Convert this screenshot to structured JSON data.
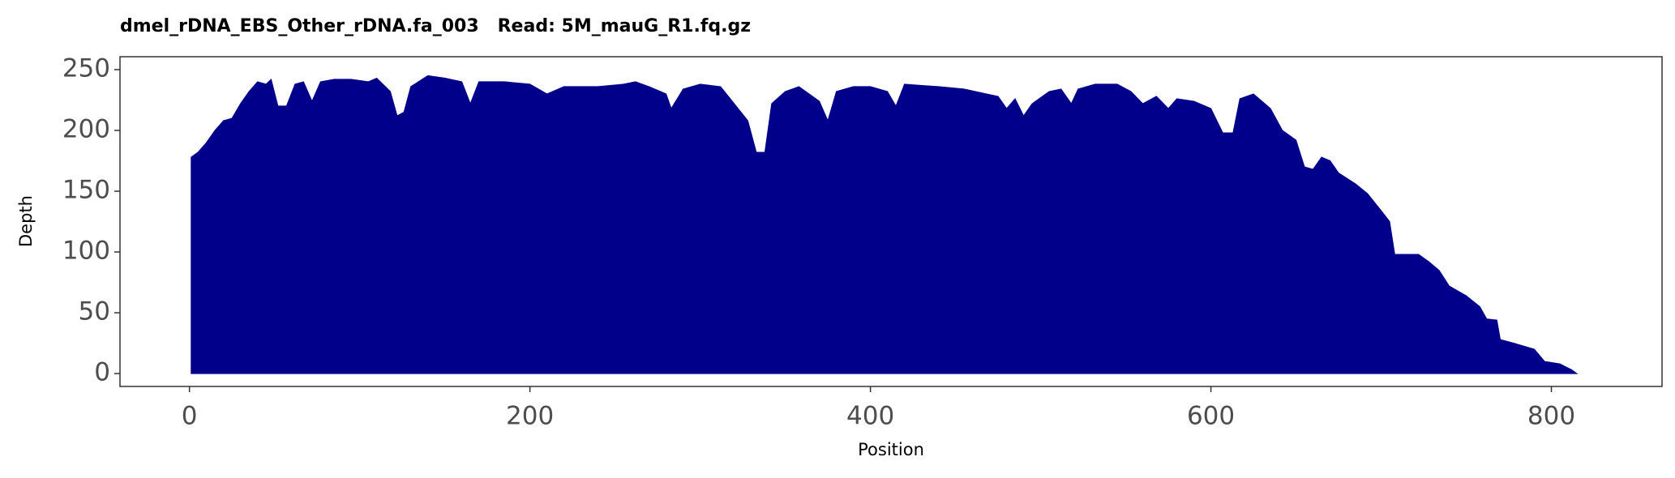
{
  "chart_data": {
    "type": "area",
    "title": "dmel_rDNA_EBS_Other_rDNA.fa_003   Read: 5M_mauG_R1.fq.gz",
    "x_label": "Position",
    "y_label": "Depth",
    "color": "#00008b",
    "x": [
      1,
      5,
      10,
      15,
      20,
      25,
      30,
      35,
      40,
      45,
      48,
      52,
      57,
      62,
      67,
      72,
      77,
      85,
      95,
      105,
      110,
      118,
      122,
      126,
      130,
      140,
      150,
      160,
      165,
      170,
      185,
      200,
      210,
      220,
      240,
      255,
      262,
      270,
      280,
      283,
      290,
      300,
      312,
      320,
      328,
      333,
      338,
      342,
      350,
      358,
      364,
      370,
      375,
      380,
      390,
      400,
      410,
      415,
      420,
      440,
      455,
      468,
      475,
      480,
      485,
      490,
      495,
      505,
      512,
      518,
      522,
      532,
      545,
      553,
      560,
      568,
      575,
      580,
      590,
      600,
      607,
      613,
      617,
      625,
      635,
      642,
      650,
      655,
      660,
      665,
      670,
      675,
      685,
      692,
      700,
      705,
      708,
      715,
      722,
      728,
      734,
      740,
      750,
      758,
      762,
      768,
      770,
      778,
      790,
      796,
      805,
      812,
      815
    ],
    "values": [
      178,
      182,
      190,
      200,
      208,
      210,
      222,
      232,
      240,
      238,
      242,
      220,
      220,
      238,
      240,
      224,
      240,
      242,
      242,
      240,
      243,
      232,
      212,
      215,
      236,
      245,
      243,
      240,
      222,
      240,
      240,
      238,
      230,
      236,
      236,
      238,
      240,
      236,
      230,
      218,
      234,
      238,
      236,
      222,
      208,
      182,
      182,
      222,
      232,
      236,
      230,
      224,
      208,
      232,
      236,
      236,
      232,
      220,
      238,
      236,
      234,
      230,
      228,
      218,
      226,
      212,
      222,
      232,
      234,
      222,
      234,
      238,
      238,
      232,
      222,
      228,
      218,
      226,
      224,
      218,
      198,
      198,
      226,
      230,
      218,
      200,
      192,
      170,
      168,
      178,
      175,
      165,
      156,
      148,
      134,
      125,
      98,
      98,
      98,
      92,
      85,
      72,
      64,
      55,
      45,
      44,
      28,
      25,
      20,
      10,
      8,
      3,
      0
    ],
    "xlim": [
      -40.8,
      865
    ],
    "ylim": [
      -10.6,
      260.6
    ],
    "xticks": [
      0,
      200,
      400,
      600,
      800
    ],
    "yticks": [
      0,
      50,
      100,
      150,
      200,
      250
    ]
  }
}
